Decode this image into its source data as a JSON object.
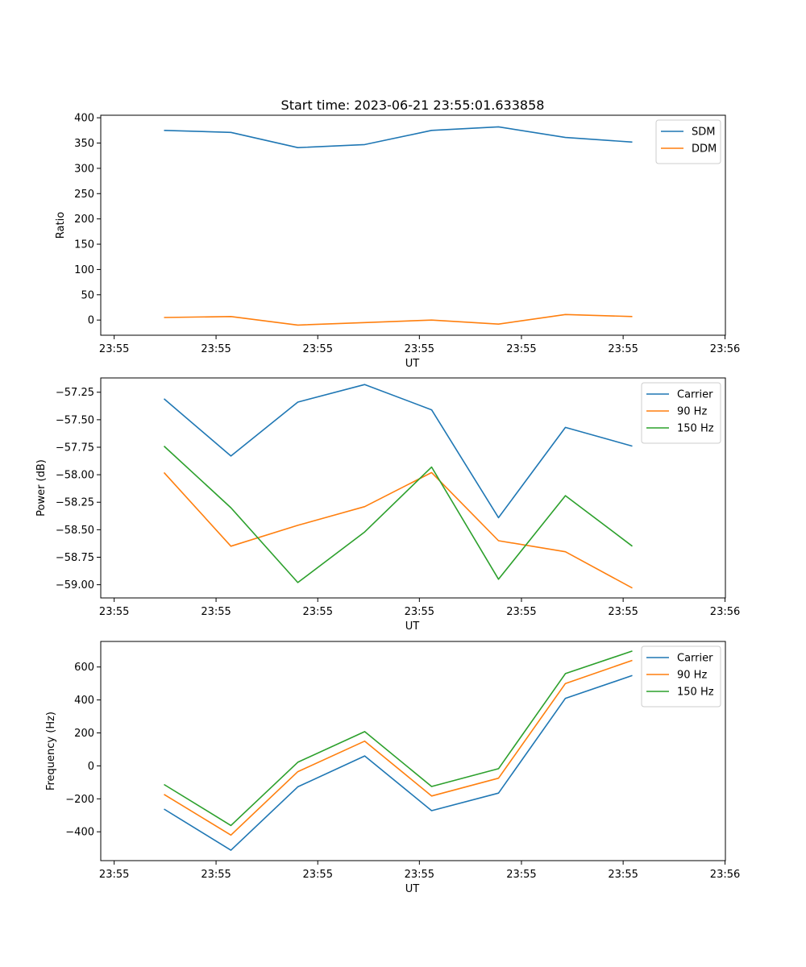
{
  "figure": {
    "title": "Start time: 2023-06-21 23:55:01.633858"
  },
  "chart_data": [
    {
      "type": "line",
      "xlabel": "UT",
      "ylabel": "Ratio",
      "x_tick_labels": [
        "23:55",
        "23:55",
        "23:55",
        "23:55",
        "23:55",
        "23:55",
        "23:56"
      ],
      "y_ticks": [
        0,
        50,
        100,
        150,
        200,
        250,
        300,
        350,
        400
      ],
      "ylim": [
        -30,
        405
      ],
      "legend_position": "top-right",
      "grid": false,
      "series": [
        {
          "name": "SDM",
          "color": "#1f77b4",
          "values": [
            375,
            371,
            341,
            347,
            375,
            382,
            361,
            352
          ]
        },
        {
          "name": "DDM",
          "color": "#ff7f0e",
          "values": [
            5,
            7,
            -10,
            -5,
            0,
            -8,
            11,
            7
          ]
        }
      ]
    },
    {
      "type": "line",
      "xlabel": "UT",
      "ylabel": "Power (dB)",
      "x_tick_labels": [
        "23:55",
        "23:55",
        "23:55",
        "23:55",
        "23:55",
        "23:55",
        "23:56"
      ],
      "y_ticks": [
        -59.0,
        -58.75,
        -58.5,
        -58.25,
        -58.0,
        -57.75,
        -57.5,
        -57.25
      ],
      "y_tick_labels": [
        "−59.00",
        "−58.75",
        "−58.50",
        "−58.25",
        "−58.00",
        "−57.75",
        "−57.50",
        "−57.25"
      ],
      "ylim": [
        -59.12,
        -57.12
      ],
      "legend_position": "top-right",
      "grid": false,
      "series": [
        {
          "name": "Carrier",
          "color": "#1f77b4",
          "values": [
            -57.31,
            -57.83,
            -57.34,
            -57.18,
            -57.41,
            -58.39,
            -57.57,
            -57.74
          ]
        },
        {
          "name": "90 Hz",
          "color": "#ff7f0e",
          "values": [
            -57.98,
            -58.65,
            -58.46,
            -58.29,
            -57.98,
            -58.6,
            -58.7,
            -59.03
          ]
        },
        {
          "name": "150 Hz",
          "color": "#2ca02c",
          "values": [
            -57.74,
            -58.3,
            -58.98,
            -58.52,
            -57.93,
            -58.95,
            -58.19,
            -58.65
          ]
        }
      ]
    },
    {
      "type": "line",
      "xlabel": "UT",
      "ylabel": "Frequency (Hz)",
      "x_tick_labels": [
        "23:55",
        "23:55",
        "23:55",
        "23:55",
        "23:55",
        "23:55",
        "23:56"
      ],
      "y_ticks": [
        -400,
        -200,
        0,
        200,
        400,
        600
      ],
      "y_tick_labels": [
        "−400",
        "−200",
        "0",
        "200",
        "400",
        "600"
      ],
      "ylim": [
        -575,
        755
      ],
      "legend_position": "top-right",
      "grid": false,
      "series": [
        {
          "name": "Carrier",
          "color": "#1f77b4",
          "values": [
            -262,
            -512,
            -127,
            60,
            -272,
            -165,
            410,
            548
          ]
        },
        {
          "name": "90 Hz",
          "color": "#ff7f0e",
          "values": [
            -173,
            -420,
            -35,
            150,
            -183,
            -75,
            500,
            640
          ]
        },
        {
          "name": "150 Hz",
          "color": "#2ca02c",
          "values": [
            -113,
            -362,
            22,
            208,
            -125,
            -17,
            560,
            697
          ]
        }
      ]
    }
  ]
}
